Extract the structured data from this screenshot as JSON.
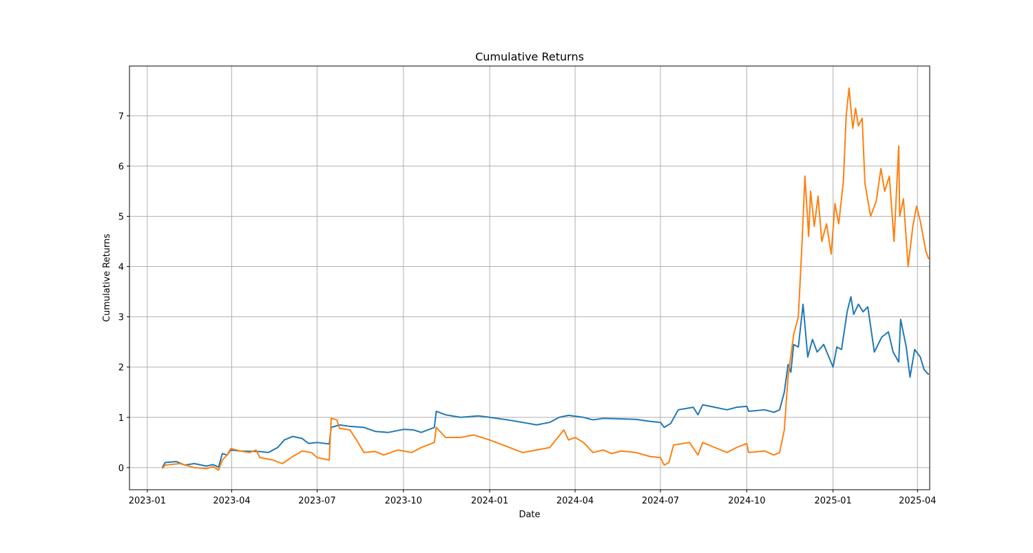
{
  "chart_data": {
    "type": "line",
    "title": "Cumulative Returns",
    "xlabel": "Date",
    "ylabel": "Cumulative Returns",
    "xlim": [
      "2022-12-13",
      "2025-04-14"
    ],
    "ylim": [
      -0.44,
      7.99
    ],
    "x_ticks": [
      "2023-01-01",
      "2023-04-01",
      "2023-07-01",
      "2023-10-01",
      "2024-01-01",
      "2024-04-01",
      "2024-07-01",
      "2024-10-01",
      "2025-01-01",
      "2025-04-01"
    ],
    "x_tick_labels": [
      "2023-01",
      "2023-04",
      "2023-07",
      "2023-10",
      "2024-01",
      "2024-04",
      "2024-07",
      "2024-10",
      "2025-01",
      "2025-04"
    ],
    "y_ticks": [
      0,
      1,
      2,
      3,
      4,
      5,
      6,
      7
    ],
    "y_tick_labels": [
      "0",
      "1",
      "2",
      "3",
      "4",
      "5",
      "6",
      "7"
    ],
    "grid": true,
    "legend": "none",
    "series": [
      {
        "color": "#1f77b4",
        "points": [
          [
            "2023-01-17",
            0.0
          ],
          [
            "2023-01-20",
            0.1
          ],
          [
            "2023-02-01",
            0.12
          ],
          [
            "2023-02-10",
            0.05
          ],
          [
            "2023-02-20",
            0.08
          ],
          [
            "2023-03-05",
            0.03
          ],
          [
            "2023-03-12",
            0.06
          ],
          [
            "2023-03-18",
            0.01
          ],
          [
            "2023-03-22",
            0.28
          ],
          [
            "2023-03-27",
            0.25
          ],
          [
            "2023-03-31",
            0.35
          ],
          [
            "2023-04-10",
            0.33
          ],
          [
            "2023-05-01",
            0.32
          ],
          [
            "2023-05-10",
            0.3
          ],
          [
            "2023-05-20",
            0.4
          ],
          [
            "2023-05-27",
            0.55
          ],
          [
            "2023-06-05",
            0.62
          ],
          [
            "2023-06-15",
            0.58
          ],
          [
            "2023-06-22",
            0.48
          ],
          [
            "2023-07-01",
            0.5
          ],
          [
            "2023-07-14",
            0.47
          ],
          [
            "2023-07-16",
            0.8
          ],
          [
            "2023-07-25",
            0.85
          ],
          [
            "2023-08-05",
            0.82
          ],
          [
            "2023-08-20",
            0.8
          ],
          [
            "2023-09-01",
            0.72
          ],
          [
            "2023-09-15",
            0.7
          ],
          [
            "2023-10-01",
            0.76
          ],
          [
            "2023-10-12",
            0.75
          ],
          [
            "2023-10-20",
            0.7
          ],
          [
            "2023-11-03",
            0.8
          ],
          [
            "2023-11-05",
            1.12
          ],
          [
            "2023-11-15",
            1.05
          ],
          [
            "2023-12-01",
            1.0
          ],
          [
            "2023-12-20",
            1.03
          ],
          [
            "2024-01-01",
            1.0
          ],
          [
            "2024-01-20",
            0.95
          ],
          [
            "2024-02-05",
            0.9
          ],
          [
            "2024-02-20",
            0.85
          ],
          [
            "2024-03-05",
            0.9
          ],
          [
            "2024-03-15",
            1.0
          ],
          [
            "2024-03-25",
            1.04
          ],
          [
            "2024-04-10",
            1.0
          ],
          [
            "2024-04-20",
            0.95
          ],
          [
            "2024-05-01",
            0.98
          ],
          [
            "2024-05-20",
            0.97
          ],
          [
            "2024-06-05",
            0.96
          ],
          [
            "2024-06-20",
            0.92
          ],
          [
            "2024-07-01",
            0.9
          ],
          [
            "2024-07-05",
            0.8
          ],
          [
            "2024-07-12",
            0.88
          ],
          [
            "2024-07-20",
            1.15
          ],
          [
            "2024-08-05",
            1.2
          ],
          [
            "2024-08-10",
            1.05
          ],
          [
            "2024-08-15",
            1.25
          ],
          [
            "2024-08-28",
            1.2
          ],
          [
            "2024-09-10",
            1.15
          ],
          [
            "2024-09-20",
            1.2
          ],
          [
            "2024-10-01",
            1.22
          ],
          [
            "2024-10-03",
            1.12
          ],
          [
            "2024-10-20",
            1.15
          ],
          [
            "2024-10-30",
            1.1
          ],
          [
            "2024-11-05",
            1.15
          ],
          [
            "2024-11-10",
            1.5
          ],
          [
            "2024-11-14",
            2.05
          ],
          [
            "2024-11-17",
            1.9
          ],
          [
            "2024-11-20",
            2.45
          ],
          [
            "2024-11-25",
            2.4
          ],
          [
            "2024-11-30",
            3.25
          ],
          [
            "2024-12-05",
            2.2
          ],
          [
            "2024-12-10",
            2.55
          ],
          [
            "2024-12-15",
            2.3
          ],
          [
            "2024-12-22",
            2.45
          ],
          [
            "2025-01-01",
            2.0
          ],
          [
            "2025-01-05",
            2.4
          ],
          [
            "2025-01-10",
            2.35
          ],
          [
            "2025-01-16",
            3.1
          ],
          [
            "2025-01-20",
            3.4
          ],
          [
            "2025-01-23",
            3.05
          ],
          [
            "2025-01-28",
            3.25
          ],
          [
            "2025-02-02",
            3.1
          ],
          [
            "2025-02-07",
            3.2
          ],
          [
            "2025-02-14",
            2.3
          ],
          [
            "2025-02-22",
            2.6
          ],
          [
            "2025-03-01",
            2.7
          ],
          [
            "2025-03-06",
            2.3
          ],
          [
            "2025-03-12",
            2.1
          ],
          [
            "2025-03-14",
            2.95
          ],
          [
            "2025-03-20",
            2.4
          ],
          [
            "2025-03-24",
            1.8
          ],
          [
            "2025-03-29",
            2.35
          ],
          [
            "2025-04-04",
            2.2
          ],
          [
            "2025-04-08",
            1.95
          ],
          [
            "2025-04-13",
            1.85
          ]
        ]
      },
      {
        "color": "#ff7f0e",
        "points": [
          [
            "2023-01-17",
            -0.02
          ],
          [
            "2023-01-20",
            0.05
          ],
          [
            "2023-02-05",
            0.08
          ],
          [
            "2023-02-20",
            0.0
          ],
          [
            "2023-03-05",
            -0.02
          ],
          [
            "2023-03-12",
            0.02
          ],
          [
            "2023-03-18",
            -0.05
          ],
          [
            "2023-03-22",
            0.15
          ],
          [
            "2023-03-27",
            0.25
          ],
          [
            "2023-03-31",
            0.38
          ],
          [
            "2023-04-10",
            0.33
          ],
          [
            "2023-04-20",
            0.3
          ],
          [
            "2023-04-27",
            0.35
          ],
          [
            "2023-05-01",
            0.2
          ],
          [
            "2023-05-15",
            0.15
          ],
          [
            "2023-05-25",
            0.08
          ],
          [
            "2023-06-05",
            0.22
          ],
          [
            "2023-06-15",
            0.33
          ],
          [
            "2023-06-25",
            0.3
          ],
          [
            "2023-07-01",
            0.2
          ],
          [
            "2023-07-14",
            0.15
          ],
          [
            "2023-07-16",
            0.98
          ],
          [
            "2023-07-22",
            0.95
          ],
          [
            "2023-07-25",
            0.78
          ],
          [
            "2023-08-05",
            0.75
          ],
          [
            "2023-08-12",
            0.55
          ],
          [
            "2023-08-20",
            0.3
          ],
          [
            "2023-09-01",
            0.32
          ],
          [
            "2023-09-10",
            0.25
          ],
          [
            "2023-09-25",
            0.35
          ],
          [
            "2023-10-10",
            0.3
          ],
          [
            "2023-10-20",
            0.4
          ],
          [
            "2023-11-03",
            0.5
          ],
          [
            "2023-11-05",
            0.8
          ],
          [
            "2023-11-15",
            0.6
          ],
          [
            "2023-12-01",
            0.6
          ],
          [
            "2023-12-15",
            0.65
          ],
          [
            "2024-01-01",
            0.55
          ],
          [
            "2024-01-15",
            0.45
          ],
          [
            "2024-02-05",
            0.3
          ],
          [
            "2024-02-20",
            0.35
          ],
          [
            "2024-03-05",
            0.4
          ],
          [
            "2024-03-20",
            0.75
          ],
          [
            "2024-03-25",
            0.55
          ],
          [
            "2024-04-01",
            0.6
          ],
          [
            "2024-04-10",
            0.5
          ],
          [
            "2024-04-20",
            0.3
          ],
          [
            "2024-05-01",
            0.35
          ],
          [
            "2024-05-10",
            0.28
          ],
          [
            "2024-05-20",
            0.33
          ],
          [
            "2024-06-05",
            0.3
          ],
          [
            "2024-06-20",
            0.22
          ],
          [
            "2024-07-01",
            0.2
          ],
          [
            "2024-07-05",
            0.05
          ],
          [
            "2024-07-10",
            0.1
          ],
          [
            "2024-07-15",
            0.45
          ],
          [
            "2024-08-01",
            0.5
          ],
          [
            "2024-08-10",
            0.25
          ],
          [
            "2024-08-15",
            0.5
          ],
          [
            "2024-08-28",
            0.4
          ],
          [
            "2024-09-10",
            0.3
          ],
          [
            "2024-09-20",
            0.4
          ],
          [
            "2024-10-01",
            0.48
          ],
          [
            "2024-10-03",
            0.3
          ],
          [
            "2024-10-20",
            0.33
          ],
          [
            "2024-10-30",
            0.25
          ],
          [
            "2024-11-05",
            0.3
          ],
          [
            "2024-11-10",
            0.75
          ],
          [
            "2024-11-14",
            1.8
          ],
          [
            "2024-11-20",
            2.65
          ],
          [
            "2024-11-25",
            3.0
          ],
          [
            "2024-11-29",
            4.5
          ],
          [
            "2024-12-02",
            5.8
          ],
          [
            "2024-12-06",
            4.6
          ],
          [
            "2024-12-08",
            5.5
          ],
          [
            "2024-12-12",
            4.8
          ],
          [
            "2024-12-16",
            5.4
          ],
          [
            "2024-12-20",
            4.5
          ],
          [
            "2024-12-25",
            4.85
          ],
          [
            "2024-12-30",
            4.25
          ],
          [
            "2025-01-03",
            5.25
          ],
          [
            "2025-01-07",
            4.85
          ],
          [
            "2025-01-12",
            5.7
          ],
          [
            "2025-01-15",
            7.0
          ],
          [
            "2025-01-18",
            7.55
          ],
          [
            "2025-01-22",
            6.75
          ],
          [
            "2025-01-25",
            7.15
          ],
          [
            "2025-01-28",
            6.8
          ],
          [
            "2025-02-01",
            6.95
          ],
          [
            "2025-02-04",
            5.65
          ],
          [
            "2025-02-10",
            5.0
          ],
          [
            "2025-02-16",
            5.3
          ],
          [
            "2025-02-21",
            5.95
          ],
          [
            "2025-02-25",
            5.5
          ],
          [
            "2025-03-02",
            5.8
          ],
          [
            "2025-03-07",
            4.5
          ],
          [
            "2025-03-12",
            6.4
          ],
          [
            "2025-03-13",
            5.0
          ],
          [
            "2025-03-17",
            5.35
          ],
          [
            "2025-03-22",
            4.0
          ],
          [
            "2025-03-27",
            4.8
          ],
          [
            "2025-03-31",
            5.2
          ],
          [
            "2025-04-04",
            4.9
          ],
          [
            "2025-04-07",
            4.6
          ],
          [
            "2025-04-10",
            4.3
          ],
          [
            "2025-04-13",
            4.15
          ]
        ]
      }
    ]
  }
}
